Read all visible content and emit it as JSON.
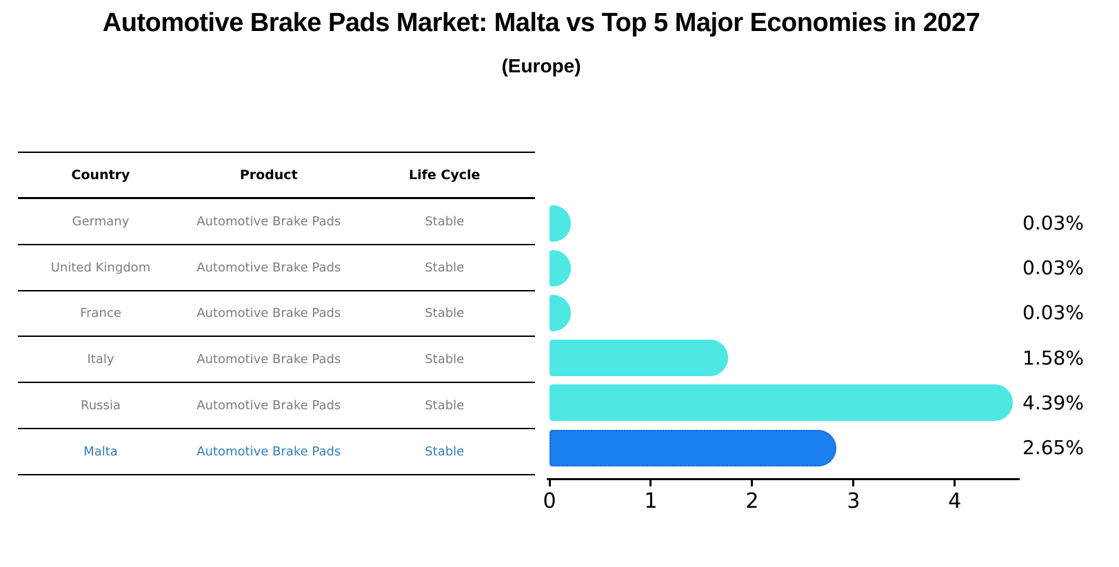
{
  "title": "Automotive Brake Pads Market: Malta vs Top 5 Major Economies in 2027",
  "subtitle": "(Europe)",
  "table": {
    "headers": {
      "country": "Country",
      "product": "Product",
      "life_cycle": "Life Cycle"
    },
    "rows": [
      {
        "country": "Germany",
        "product": "Automotive Brake Pads",
        "life_cycle": "Stable",
        "highlight": false
      },
      {
        "country": "United Kingdom",
        "product": "Automotive Brake Pads",
        "life_cycle": "Stable",
        "highlight": false
      },
      {
        "country": "France",
        "product": "Automotive Brake Pads",
        "life_cycle": "Stable",
        "highlight": false
      },
      {
        "country": "Italy",
        "product": "Automotive Brake Pads",
        "life_cycle": "Stable",
        "highlight": false
      },
      {
        "country": "Russia",
        "product": "Automotive Brake Pads",
        "life_cycle": "Stable",
        "highlight": false
      },
      {
        "country": "Malta",
        "product": "Automotive Brake Pads",
        "life_cycle": "Stable",
        "highlight": true
      }
    ]
  },
  "chart_data": {
    "type": "bar",
    "orientation": "horizontal",
    "title": "Automotive Brake Pads Market: Malta vs Top 5 Major Economies in 2027 (Europe)",
    "categories": [
      "Germany",
      "United Kingdom",
      "France",
      "Italy",
      "Russia",
      "Malta"
    ],
    "values": [
      0.03,
      0.03,
      0.03,
      1.58,
      4.39,
      2.65
    ],
    "value_labels": [
      "0.03%",
      "0.03%",
      "0.03%",
      "1.58%",
      "4.39%",
      "2.65%"
    ],
    "xlabel": "",
    "ylabel": "",
    "xlim": [
      0,
      4.6
    ],
    "xticks": [
      "0",
      "1",
      "2",
      "3",
      "4"
    ],
    "grid": false,
    "legend": false,
    "bar_color": "#4de8e4",
    "highlight_index": 5,
    "highlight_color": "#1b80f0",
    "highlight_border_color": "#1464d8"
  },
  "colors": {
    "row_text": "#7d7d7d",
    "highlight_text": "#2e7ebe",
    "axis": "#000000",
    "background": "#ffffff"
  }
}
